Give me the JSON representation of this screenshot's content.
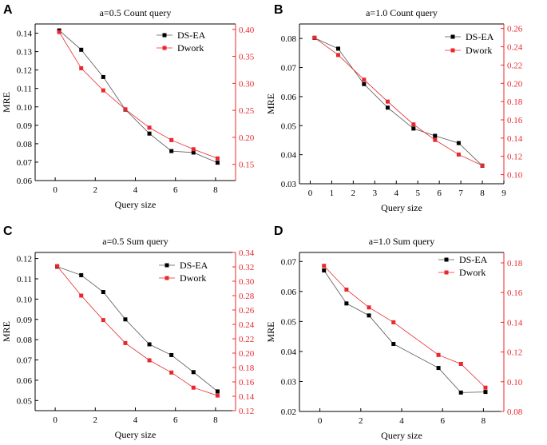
{
  "colors": {
    "ds_ea": "#000000",
    "dwork": "#e8282e",
    "ds_ea_line": "#555555",
    "dwork_line": "#e8282e"
  },
  "chart_data": [
    {
      "panel": "A",
      "type": "line",
      "title": "a=0.5 Count query",
      "xlabel": "Query size",
      "ylabel": "MRE",
      "xlim": [
        -1,
        9
      ],
      "xticks": [
        "0",
        "2",
        "4",
        "6",
        "8"
      ],
      "xtick_values": [
        0,
        2,
        4,
        6,
        8
      ],
      "ylim_left": [
        0.06,
        0.145
      ],
      "yticks_left": [
        "0.06",
        "0.07",
        "0.08",
        "0.09",
        "0.10",
        "0.11",
        "0.12",
        "0.13",
        "0.14"
      ],
      "ytick_values_left": [
        0.06,
        0.07,
        0.08,
        0.09,
        0.1,
        0.11,
        0.12,
        0.13,
        0.14
      ],
      "ylim_right": [
        0.12,
        0.41
      ],
      "yticks_right": [
        "0.15",
        "0.20",
        "0.25",
        "0.30",
        "0.35",
        "0.40"
      ],
      "ytick_values_right": [
        0.15,
        0.2,
        0.25,
        0.3,
        0.35,
        0.4
      ],
      "legend": "top-right",
      "series": [
        {
          "name": "DS-EA",
          "axis": "left",
          "x": [
            0.2,
            1.3,
            2.4,
            3.5,
            4.7,
            5.8,
            6.9,
            8.1
          ],
          "values": [
            0.1415,
            0.131,
            0.1162,
            0.0985,
            0.0855,
            0.076,
            0.0752,
            0.0697
          ]
        },
        {
          "name": "Dwork",
          "axis": "right",
          "x": [
            0.2,
            1.3,
            2.4,
            3.5,
            4.7,
            5.8,
            6.9,
            8.1
          ],
          "values": [
            0.395,
            0.328,
            0.287,
            0.252,
            0.218,
            0.195,
            0.178,
            0.161
          ]
        }
      ]
    },
    {
      "panel": "B",
      "type": "line",
      "title": "a=1.0 Count query",
      "xlabel": "Query size",
      "ylabel": "MRE",
      "xlim": [
        -0.5,
        9
      ],
      "xticks": [
        "0",
        "1",
        "2",
        "3",
        "4",
        "5",
        "6",
        "7",
        "8",
        "9"
      ],
      "xtick_values": [
        0,
        1,
        2,
        3,
        4,
        5,
        6,
        7,
        8,
        9
      ],
      "ylim_left": [
        0.03,
        0.085
      ],
      "yticks_left": [
        "0.03",
        "0.04",
        "0.05",
        "0.06",
        "0.07",
        "0.08"
      ],
      "ytick_values_left": [
        0.03,
        0.04,
        0.05,
        0.06,
        0.07,
        0.08
      ],
      "ylim_right": [
        0.09,
        0.265
      ],
      "yticks_right": [
        "0.10",
        "0.12",
        "0.14",
        "0.16",
        "0.18",
        "0.20",
        "0.22",
        "0.24",
        "0.26"
      ],
      "ytick_values_right": [
        0.1,
        0.12,
        0.14,
        0.16,
        0.18,
        0.2,
        0.22,
        0.24,
        0.26
      ],
      "legend": "top-right",
      "series": [
        {
          "name": "DS-EA",
          "axis": "left",
          "x": [
            0.2,
            1.3,
            2.5,
            3.6,
            4.8,
            5.8,
            6.9,
            8.0
          ],
          "values": [
            0.0802,
            0.0765,
            0.0643,
            0.0562,
            0.049,
            0.0465,
            0.044,
            0.0362
          ]
        },
        {
          "name": "Dwork",
          "axis": "right",
          "x": [
            0.2,
            1.3,
            2.5,
            3.6,
            4.8,
            5.8,
            6.9,
            8.0
          ],
          "values": [
            0.25,
            0.231,
            0.204,
            0.18,
            0.155,
            0.138,
            0.122,
            0.11
          ]
        }
      ]
    },
    {
      "panel": "C",
      "type": "line",
      "title": "a=0.5 Sum query",
      "xlabel": "Query size",
      "ylabel": "MRE",
      "xlim": [
        -1,
        9
      ],
      "xticks": [
        "0",
        "2",
        "4",
        "6",
        "8"
      ],
      "xtick_values": [
        0,
        2,
        4,
        6,
        8
      ],
      "ylim_left": [
        0.045,
        0.123
      ],
      "yticks_left": [
        "0.05",
        "0.06",
        "0.07",
        "0.08",
        "0.09",
        "0.10",
        "0.11",
        "0.12"
      ],
      "ytick_values_left": [
        0.05,
        0.06,
        0.07,
        0.08,
        0.09,
        0.1,
        0.11,
        0.12
      ],
      "ylim_right": [
        0.12,
        0.34
      ],
      "yticks_right": [
        "0.12",
        "0.14",
        "0.16",
        "0.18",
        "0.20",
        "0.22",
        "0.24",
        "0.26",
        "0.28",
        "0.30",
        "0.32",
        "0.34"
      ],
      "ytick_values_right": [
        0.12,
        0.14,
        0.16,
        0.18,
        0.2,
        0.22,
        0.24,
        0.26,
        0.28,
        0.3,
        0.32,
        0.34
      ],
      "legend": "top-right",
      "series": [
        {
          "name": "DS-EA",
          "axis": "left",
          "x": [
            0.1,
            1.3,
            2.4,
            3.5,
            4.7,
            5.8,
            6.9,
            8.1
          ],
          "values": [
            0.116,
            0.1118,
            0.1035,
            0.09,
            0.0777,
            0.0724,
            0.064,
            0.0545
          ]
        },
        {
          "name": "Dwork",
          "axis": "right",
          "x": [
            0.1,
            1.3,
            2.4,
            3.5,
            4.7,
            5.8,
            6.9,
            8.1
          ],
          "values": [
            0.321,
            0.28,
            0.246,
            0.214,
            0.19,
            0.173,
            0.152,
            0.141
          ]
        }
      ]
    },
    {
      "panel": "D",
      "type": "line",
      "title": "a=1.0 Sum query",
      "xlabel": "Query size",
      "ylabel": "MRE",
      "xlim": [
        -1,
        9
      ],
      "xticks": [
        "0",
        "2",
        "4",
        "6",
        "8"
      ],
      "xtick_values": [
        0,
        2,
        4,
        6,
        8
      ],
      "ylim_left": [
        0.02,
        0.073
      ],
      "yticks_left": [
        "0.02",
        "0.03",
        "0.04",
        "0.05",
        "0.06",
        "0.07"
      ],
      "ytick_values_left": [
        0.02,
        0.03,
        0.04,
        0.05,
        0.06,
        0.07
      ],
      "ylim_right": [
        0.08,
        0.187
      ],
      "yticks_right": [
        "0.08",
        "0.10",
        "0.12",
        "0.14",
        "0.16",
        "0.18"
      ],
      "ytick_values_right": [
        0.08,
        0.1,
        0.12,
        0.14,
        0.16,
        0.18
      ],
      "legend": "top-right",
      "series": [
        {
          "name": "DS-EA",
          "axis": "left",
          "x": [
            0.2,
            1.3,
            2.4,
            3.6,
            5.8,
            6.9,
            8.1
          ],
          "values": [
            0.067,
            0.056,
            0.052,
            0.0425,
            0.0345,
            0.0263,
            0.0265
          ]
        },
        {
          "name": "Dwork",
          "axis": "right",
          "x": [
            0.2,
            1.3,
            2.4,
            3.6,
            5.8,
            6.9,
            8.1
          ],
          "values": [
            0.178,
            0.162,
            0.15,
            0.14,
            0.118,
            0.112,
            0.096
          ]
        }
      ]
    }
  ]
}
